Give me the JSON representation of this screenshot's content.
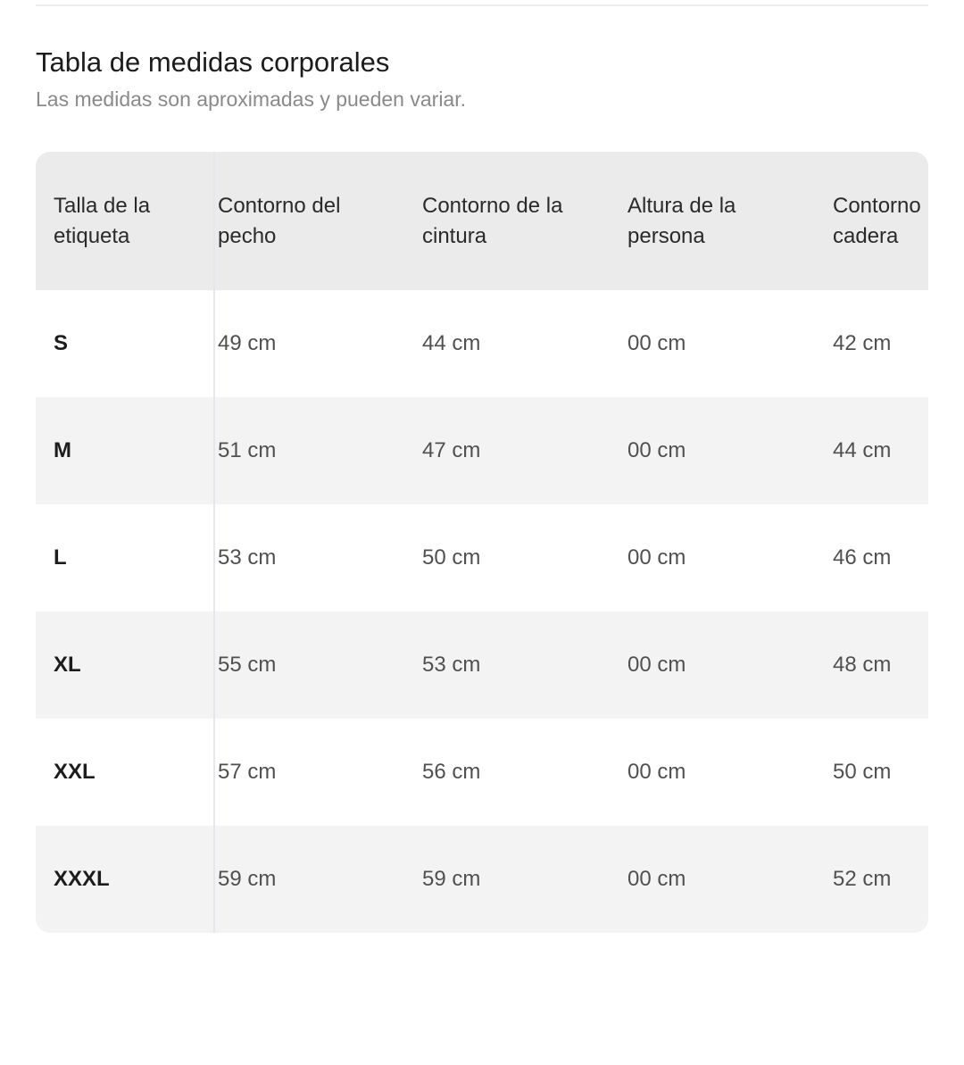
{
  "header": {
    "title": "Tabla de medidas corporales",
    "subtitle": "Las medidas son aproximadas y pueden variar."
  },
  "table": {
    "headers": [
      [
        "Talla de la",
        "etiqueta"
      ],
      [
        "Contorno del",
        "pecho"
      ],
      [
        "Contorno de la",
        "cintura"
      ],
      [
        "Altura de la",
        "persona"
      ],
      [
        "Contorno",
        "cadera"
      ]
    ],
    "rows": [
      [
        "S",
        "49 cm",
        "44 cm",
        "00 cm",
        "42 cm"
      ],
      [
        "M",
        "51 cm",
        "47 cm",
        "00 cm",
        "44 cm"
      ],
      [
        "L",
        "53 cm",
        "50 cm",
        "00 cm",
        "46 cm"
      ],
      [
        "XL",
        "55 cm",
        "53 cm",
        "00 cm",
        "48 cm"
      ],
      [
        "XXL",
        "57 cm",
        "56 cm",
        "00 cm",
        "50 cm"
      ],
      [
        "XXXL",
        "59 cm",
        "59 cm",
        "00 cm",
        "52 cm"
      ]
    ]
  },
  "colors": {
    "header_bg": "#ebebeb",
    "row_alt_bg": "#f3f3f3",
    "subtitle": "#8a8a8a"
  }
}
